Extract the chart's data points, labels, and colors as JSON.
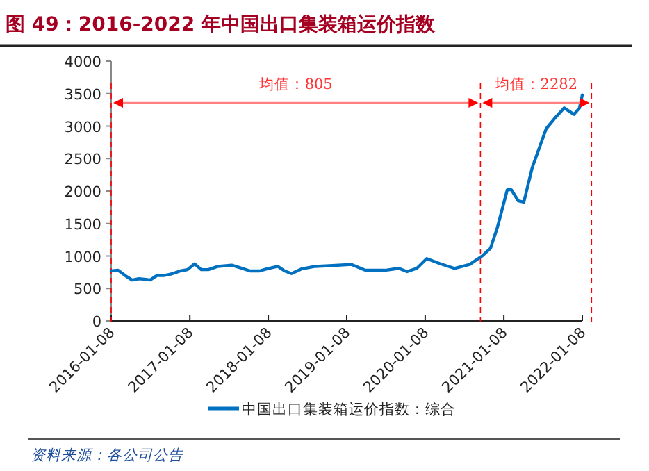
{
  "chart_data": {
    "type": "line",
    "title": "图 49：2016-2022 年中国出口集装箱运价指数",
    "x": [
      "2016-01-08",
      "2016-02-09",
      "2016-03-13",
      "2016-04-14",
      "2016-05-16",
      "2016-06-18",
      "2016-07-07",
      "2016-08-08",
      "2016-09-09",
      "2016-10-11",
      "2016-11-25",
      "2016-12-28",
      "2017-01-30",
      "2017-03-02",
      "2017-04-04",
      "2017-05-19",
      "2017-07-22",
      "2017-08-30",
      "2017-10-15",
      "2017-11-29",
      "2017-12-31",
      "2018-02-21",
      "2018-03-25",
      "2018-04-26",
      "2018-06-11",
      "2018-08-14",
      "2018-10-18",
      "2019-01-30",
      "2019-04-05",
      "2019-07-05",
      "2019-09-07",
      "2019-10-16",
      "2019-11-30",
      "2020-01-15",
      "2020-03-19",
      "2020-05-23",
      "2020-08-02",
      "2020-09-29",
      "2020-11-07",
      "2020-12-09",
      "2021-01-24",
      "2021-02-12",
      "2021-03-16",
      "2021-04-11",
      "2021-05-20",
      "2021-07-24",
      "2021-09-07",
      "2021-10-16",
      "2021-11-30",
      "2021-12-26",
      "2022-01-08"
    ],
    "series": [
      {
        "name": "中国出口集装箱运价指数：综合",
        "color": "#0070c0",
        "values": [
          770,
          780,
          700,
          630,
          650,
          640,
          630,
          700,
          700,
          720,
          770,
          790,
          880,
          790,
          790,
          840,
          860,
          820,
          770,
          770,
          800,
          840,
          770,
          730,
          800,
          840,
          850,
          870,
          780,
          780,
          810,
          760,
          810,
          960,
          880,
          810,
          870,
          1000,
          1120,
          1440,
          2020,
          2020,
          1850,
          1830,
          2360,
          2960,
          3140,
          3280,
          3180,
          3280,
          3480
        ]
      }
    ],
    "xlim": [
      "2016-01-08",
      "2022-01-08"
    ],
    "xticks": [
      "2016-01-08",
      "2017-01-08",
      "2018-01-08",
      "2019-01-08",
      "2020-01-08",
      "2021-01-08",
      "2022-01-08"
    ],
    "ylim": [
      0,
      4000
    ],
    "yticks": [
      0,
      500,
      1000,
      1500,
      2000,
      2500,
      3000,
      3500,
      4000
    ],
    "ref_lines": [
      {
        "axis": "x",
        "value": "2016-01-08",
        "color": "#ff0000",
        "line_style": "dashed"
      },
      {
        "axis": "x",
        "value": "2020-09-21",
        "color": "#ff0000",
        "line_style": "dashed"
      },
      {
        "axis": "x",
        "value": "2022-02-20",
        "color": "#ff0000",
        "line_style": "dashed"
      }
    ],
    "annotations": [
      "均值：805",
      "均值：2282",
      "资料来源：各公司公告"
    ],
    "legend": "bottom"
  }
}
